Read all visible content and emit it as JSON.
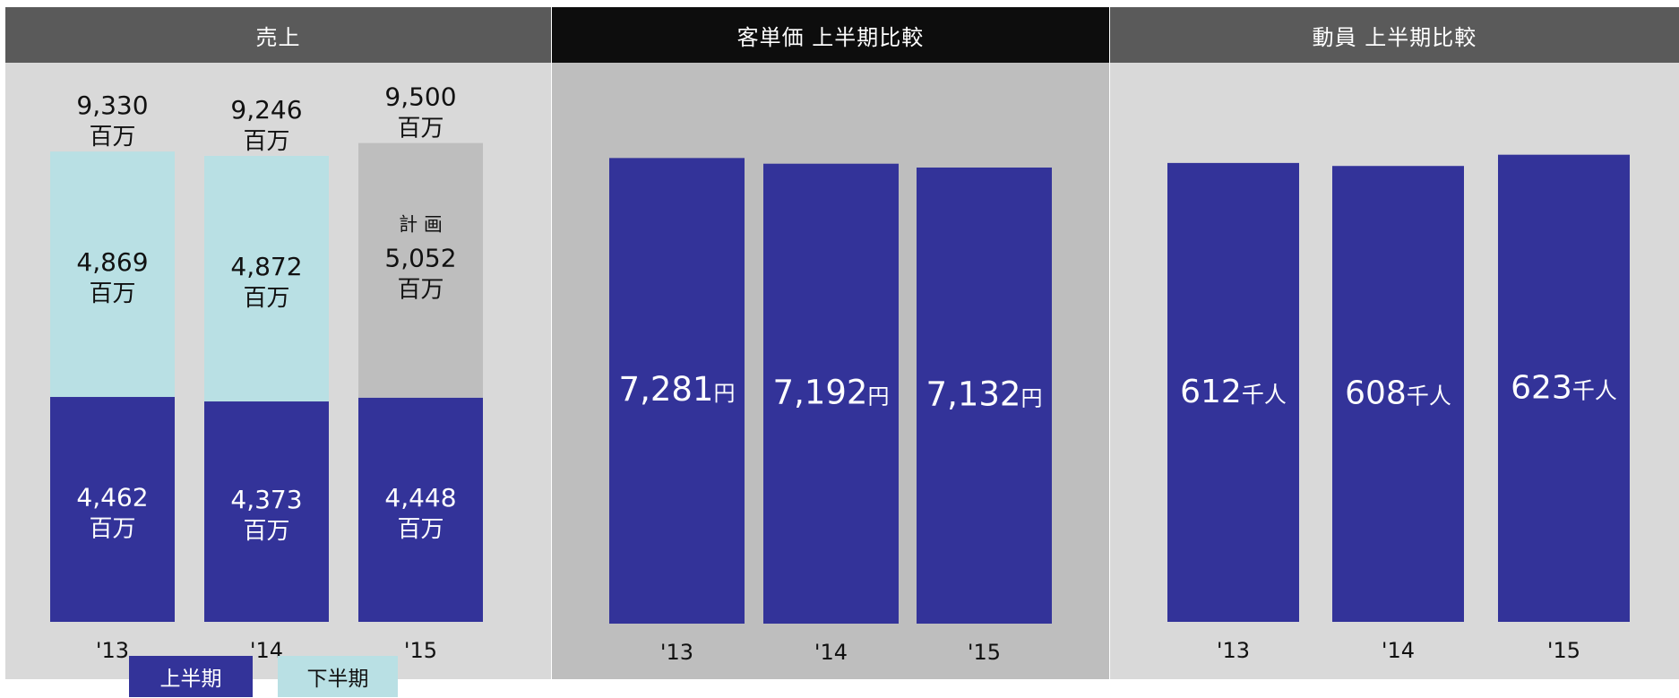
{
  "colors": {
    "first_half": "#333399",
    "second_half": "#b9e0e4",
    "plan": "#bebebe",
    "header_dark": "#5a5a5a",
    "header_black": "#0d0d0d",
    "body_light": "#d9d9d9",
    "body_mid": "#bebebe"
  },
  "panels": {
    "sales": {
      "title": "売上"
    },
    "unit_price": {
      "title": "客単価 上半期比較"
    },
    "attendance": {
      "title": "動員 上半期比較"
    }
  },
  "legend": {
    "first_half": "上半期",
    "second_half": "下半期"
  },
  "chart_data": [
    {
      "type": "bar",
      "stacked": true,
      "title": "売上",
      "categories": [
        "'13",
        "'14",
        "'15"
      ],
      "series": [
        {
          "name": "上半期",
          "values": [
            4462,
            4373,
            4448
          ],
          "labels": [
            "4,462",
            "4,373",
            "4,448"
          ]
        },
        {
          "name": "下半期",
          "values": [
            4869,
            4872,
            5052
          ],
          "labels": [
            "4,869",
            "4,872",
            "5,052"
          ]
        }
      ],
      "totals": [
        9330,
        9246,
        9500
      ],
      "total_labels": [
        "9,330",
        "9,246",
        "9,500"
      ],
      "unit": "百万",
      "plan_label": "計 画",
      "plan_index": 2,
      "ylim": [
        0,
        9600
      ]
    },
    {
      "type": "bar",
      "title": "客単価 上半期比較",
      "categories": [
        "'13",
        "'14",
        "'15"
      ],
      "values": [
        7281,
        7192,
        7132
      ],
      "labels": [
        "7,281",
        "7,192",
        "7,132"
      ],
      "unit": "円",
      "ylim": [
        0,
        7300
      ]
    },
    {
      "type": "bar",
      "title": "動員 上半期比較",
      "categories": [
        "'13",
        "'14",
        "'15"
      ],
      "values": [
        612,
        608,
        623
      ],
      "labels": [
        "612",
        "608",
        "623"
      ],
      "unit": "千人",
      "ylim": [
        0,
        625
      ]
    }
  ]
}
